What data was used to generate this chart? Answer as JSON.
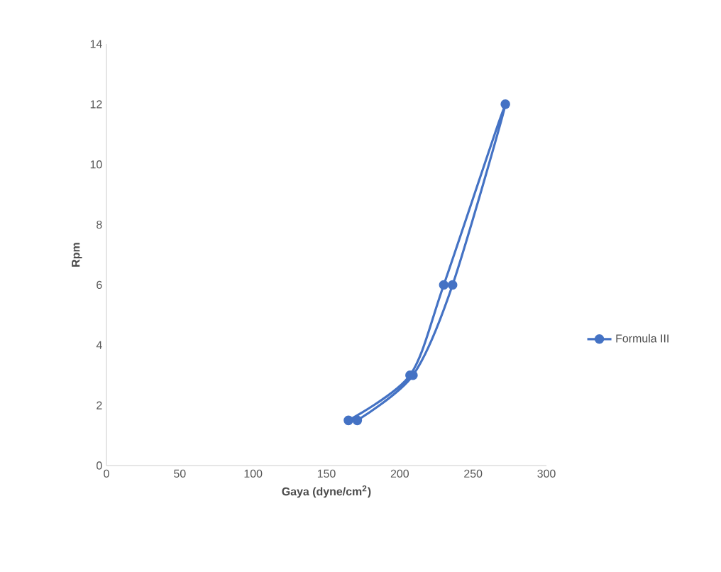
{
  "chart_data": {
    "type": "line",
    "xlabel": "Gaya (dyne/cm$^{2}$)",
    "ylabel": "Rpm",
    "series": [
      {
        "name": "Formula III",
        "color": "#4472c4",
        "x": [
          165,
          207,
          230,
          272,
          236,
          209,
          171
        ],
        "values": [
          1.5,
          3,
          6,
          12,
          6,
          3,
          1.5
        ]
      }
    ],
    "xlim": [
      0,
      300
    ],
    "ylim": [
      0,
      14
    ],
    "xticks": [
      0,
      50,
      100,
      150,
      200,
      250,
      300
    ],
    "yticks": [
      0,
      2,
      4,
      6,
      8,
      10,
      12,
      14
    ],
    "grid": false,
    "legend": "right",
    "marker": "circle",
    "line_style": "solid"
  }
}
